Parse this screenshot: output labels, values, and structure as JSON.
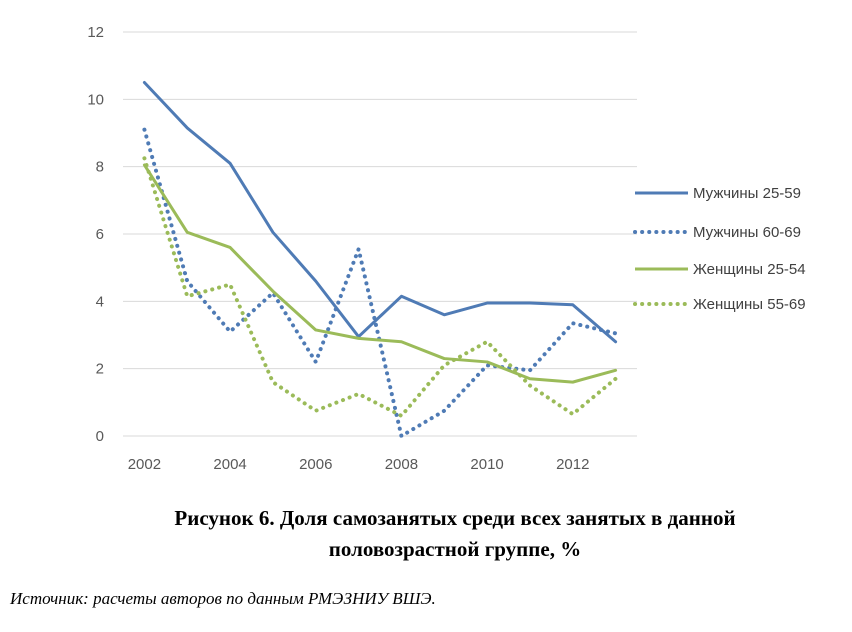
{
  "chart_data": {
    "type": "line",
    "x": [
      2002,
      2003,
      2004,
      2005,
      2006,
      2007,
      2008,
      2009,
      2010,
      2011,
      2012,
      2013
    ],
    "series": [
      {
        "name": "Мужчины 25-59",
        "color": "#4F7BB5",
        "dash": "solid",
        "values": [
          10.5,
          9.15,
          8.1,
          6.05,
          4.6,
          2.95,
          4.15,
          3.6,
          3.95,
          3.95,
          3.9,
          2.8
        ]
      },
      {
        "name": "Мужчины 60-69",
        "color": "#4F7BB5",
        "dash": "dotted",
        "values": [
          9.1,
          4.6,
          3.1,
          4.25,
          2.2,
          5.55,
          0.0,
          0.75,
          2.1,
          1.95,
          3.35,
          3.05
        ]
      },
      {
        "name": "Женщины 25-54",
        "color": "#9BBB59",
        "dash": "solid",
        "values": [
          8.05,
          6.05,
          5.6,
          4.3,
          3.15,
          2.9,
          2.8,
          2.3,
          2.2,
          1.7,
          1.6,
          1.95
        ]
      },
      {
        "name": "Женщины 55-69",
        "color": "#9BBB59",
        "dash": "dotted",
        "values": [
          8.25,
          4.15,
          4.5,
          1.6,
          0.75,
          1.25,
          0.6,
          2.1,
          2.8,
          1.5,
          0.65,
          1.7
        ]
      }
    ],
    "xticks": [
      "2002",
      "2004",
      "2006",
      "2008",
      "2010",
      "2012"
    ],
    "yticks": [
      "0",
      "2",
      "4",
      "6",
      "8",
      "10",
      "12"
    ],
    "ylim": [
      0,
      12
    ],
    "xlim": [
      2002,
      2013
    ],
    "grid": true,
    "legend": "right"
  },
  "caption_line1": "Рисунок 6. Доля самозанятых среди всех занятых в данной",
  "caption_line2": "половозрастной группе, %",
  "source": "Источник: расчеты авторов по данным РМЭЗНИУ ВШЭ."
}
